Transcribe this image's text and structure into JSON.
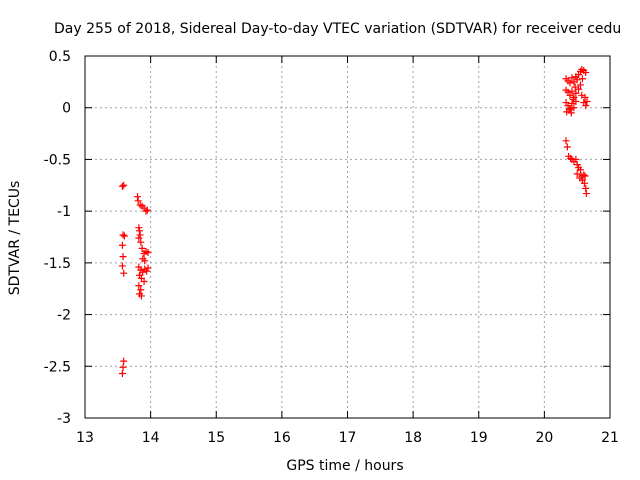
{
  "chart_data": {
    "type": "scatter",
    "title": "Day 255 of 2018, Sidereal Day-to-day VTEC variation (SDTVAR) for receiver cedu",
    "xlabel": "GPS time / hours",
    "ylabel": "SDTVAR / TECUs",
    "xlim": [
      13,
      21
    ],
    "ylim": [
      -3,
      0.5
    ],
    "xticks": [
      "13",
      "14",
      "15",
      "16",
      "17",
      "18",
      "19",
      "20",
      "21"
    ],
    "yticks": [
      "0.5",
      "0",
      "-0.5",
      "-1",
      "-1.5",
      "-2",
      "-2.5",
      "-3"
    ],
    "grid": true,
    "marker": "+",
    "color": "#ff0000",
    "series": [
      {
        "name": "SDTVAR",
        "points": [
          [
            13.57,
            -0.76
          ],
          [
            13.59,
            -0.75
          ],
          [
            13.58,
            -1.23
          ],
          [
            13.6,
            -1.24
          ],
          [
            13.57,
            -1.33
          ],
          [
            13.58,
            -1.44
          ],
          [
            13.57,
            -1.53
          ],
          [
            13.59,
            -1.6
          ],
          [
            13.59,
            -2.45
          ],
          [
            13.58,
            -2.51
          ],
          [
            13.57,
            -2.57
          ],
          [
            13.8,
            -0.86
          ],
          [
            13.81,
            -0.9
          ],
          [
            13.84,
            -0.94
          ],
          [
            13.87,
            -0.95
          ],
          [
            13.9,
            -0.97
          ],
          [
            13.93,
            -1.0
          ],
          [
            13.95,
            -0.99
          ],
          [
            13.82,
            -1.16
          ],
          [
            13.83,
            -1.19
          ],
          [
            13.84,
            -1.23
          ],
          [
            13.82,
            -1.26
          ],
          [
            13.85,
            -1.3
          ],
          [
            13.87,
            -1.36
          ],
          [
            13.9,
            -1.41
          ],
          [
            13.93,
            -1.39
          ],
          [
            13.96,
            -1.4
          ],
          [
            13.88,
            -1.46
          ],
          [
            13.91,
            -1.48
          ],
          [
            13.82,
            -1.54
          ],
          [
            13.85,
            -1.57
          ],
          [
            13.88,
            -1.59
          ],
          [
            13.91,
            -1.56
          ],
          [
            13.94,
            -1.58
          ],
          [
            13.96,
            -1.55
          ],
          [
            13.83,
            -1.62
          ],
          [
            13.86,
            -1.65
          ],
          [
            13.9,
            -1.68
          ],
          [
            13.82,
            -1.72
          ],
          [
            13.85,
            -1.76
          ],
          [
            13.83,
            -1.8
          ],
          [
            13.86,
            -1.82
          ],
          [
            20.33,
            -0.32
          ],
          [
            20.35,
            -0.38
          ],
          [
            20.37,
            -0.47
          ],
          [
            20.4,
            -0.49
          ],
          [
            20.42,
            -0.5
          ],
          [
            20.45,
            -0.52
          ],
          [
            20.48,
            -0.5
          ],
          [
            20.5,
            -0.55
          ],
          [
            20.52,
            -0.58
          ],
          [
            20.55,
            -0.6
          ],
          [
            20.5,
            -0.64
          ],
          [
            20.54,
            -0.68
          ],
          [
            20.57,
            -0.66
          ],
          [
            20.6,
            -0.65
          ],
          [
            20.62,
            -0.66
          ],
          [
            20.58,
            -0.7
          ],
          [
            20.61,
            -0.73
          ],
          [
            20.63,
            -0.78
          ],
          [
            20.64,
            -0.83
          ],
          [
            20.33,
            0.28
          ],
          [
            20.36,
            0.26
          ],
          [
            20.39,
            0.24
          ],
          [
            20.42,
            0.29
          ],
          [
            20.45,
            0.25
          ],
          [
            20.48,
            0.3
          ],
          [
            20.5,
            0.27
          ],
          [
            20.33,
            0.17
          ],
          [
            20.36,
            0.15
          ],
          [
            20.39,
            0.12
          ],
          [
            20.42,
            0.16
          ],
          [
            20.45,
            0.1
          ],
          [
            20.48,
            0.14
          ],
          [
            20.52,
            0.18
          ],
          [
            20.33,
            0.05
          ],
          [
            20.36,
            0.02
          ],
          [
            20.39,
            -0.01
          ],
          [
            20.42,
            0.04
          ],
          [
            20.45,
            0.0
          ],
          [
            20.48,
            0.06
          ],
          [
            20.34,
            -0.04
          ],
          [
            20.38,
            -0.02
          ],
          [
            20.41,
            -0.05
          ],
          [
            20.44,
            0.08
          ],
          [
            20.47,
            0.2
          ],
          [
            20.52,
            0.32
          ],
          [
            20.55,
            0.35
          ],
          [
            20.57,
            0.37
          ],
          [
            20.6,
            0.36
          ],
          [
            20.63,
            0.34
          ],
          [
            20.58,
            0.28
          ],
          [
            20.55,
            0.22
          ],
          [
            20.57,
            0.12
          ],
          [
            20.6,
            0.05
          ],
          [
            20.63,
            0.02
          ],
          [
            20.65,
            0.06
          ],
          [
            20.62,
            0.1
          ]
        ]
      }
    ]
  }
}
